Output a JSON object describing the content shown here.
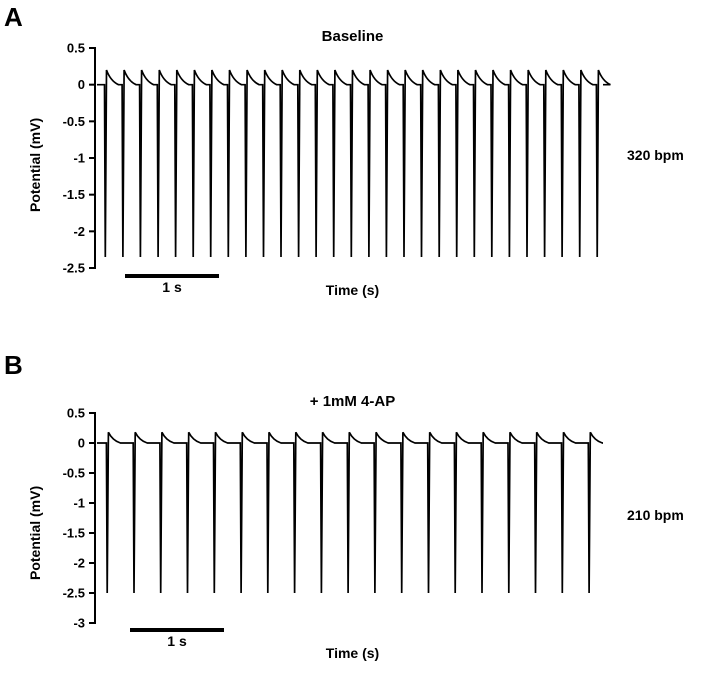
{
  "figure": {
    "background": "#ffffff",
    "trace_color": "#000000"
  },
  "chart_data": [
    {
      "type": "line",
      "panel_label": "A",
      "title": "Baseline",
      "xlabel": "Time (s)",
      "ylabel": "Potential (mV)",
      "annotation_right": "320 bpm",
      "rate_bpm": 320,
      "scale_bar_s": 1,
      "scale_bar_label": "1 s",
      "ylim": [
        -2.5,
        0.5
      ],
      "yticks": [
        0.5,
        0,
        -0.5,
        -1,
        -1.5,
        -2,
        -2.5
      ],
      "grid": false,
      "duration_s": 5.4,
      "baseline_mV": 0,
      "spike_min_mV": -2.35,
      "spike_peak_mV": 0.2,
      "spike_times_s": [
        0.08,
        0.268,
        0.455,
        0.643,
        0.83,
        1.018,
        1.205,
        1.393,
        1.58,
        1.768,
        1.955,
        2.143,
        2.33,
        2.518,
        2.705,
        2.893,
        3.08,
        3.268,
        3.455,
        3.643,
        3.83,
        4.018,
        4.205,
        4.393,
        4.58,
        4.768,
        4.955,
        5.143,
        5.33
      ]
    },
    {
      "type": "line",
      "panel_label": "B",
      "title": "+ 1mM 4-AP",
      "xlabel": "Time (s)",
      "ylabel": "Potential (mV)",
      "annotation_right": "210 bpm",
      "rate_bpm": 210,
      "scale_bar_s": 1,
      "scale_bar_label": "1 s",
      "ylim": [
        -3,
        0.5
      ],
      "yticks": [
        0.5,
        0,
        -0.5,
        -1,
        -1.5,
        -2,
        -2.5,
        -3
      ],
      "grid": false,
      "duration_s": 5.4,
      "baseline_mV": 0,
      "spike_min_mV": -2.5,
      "spike_peak_mV": 0.18,
      "spike_times_s": [
        0.1,
        0.386,
        0.671,
        0.957,
        1.243,
        1.529,
        1.814,
        2.1,
        2.386,
        2.671,
        2.957,
        3.243,
        3.529,
        3.814,
        4.1,
        4.386,
        4.671,
        4.957,
        5.243
      ]
    }
  ]
}
